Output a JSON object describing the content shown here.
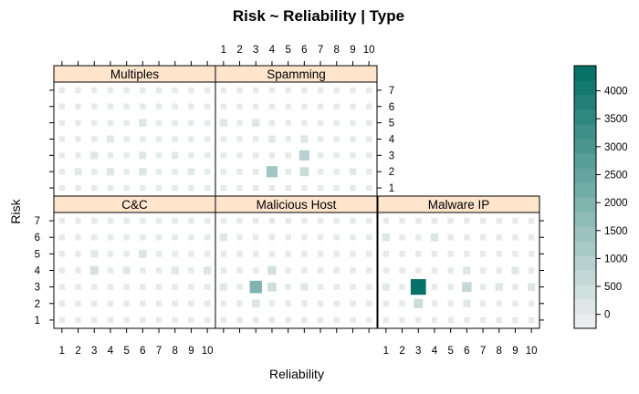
{
  "chart_data": {
    "type": "heatmap",
    "title": "Risk ~ Reliability | Type",
    "xlabel": "Reliability",
    "ylabel": "Risk",
    "x_ticks": [
      1,
      2,
      3,
      4,
      5,
      6,
      7,
      8,
      9,
      10
    ],
    "y_ticks": [
      1,
      2,
      3,
      4,
      5,
      6,
      7
    ],
    "colorbar": {
      "ticks": [
        0,
        500,
        1000,
        1500,
        2000,
        2500,
        3000,
        3500,
        4000
      ],
      "range": [
        -250,
        4450
      ],
      "low_color": "#f2f2f2",
      "high_color": "#006e64"
    },
    "panels": [
      {
        "name": "Multiples",
        "cells": [
          {
            "x": 4,
            "y": 2,
            "value": 140
          },
          {
            "x": 6,
            "y": 2,
            "value": 150
          },
          {
            "x": 3,
            "y": 3,
            "value": 110
          },
          {
            "x": 6,
            "y": 3,
            "value": 110
          },
          {
            "x": 6,
            "y": 5,
            "value": 160
          },
          {
            "x": 4,
            "y": 4,
            "value": 90
          },
          {
            "x": 2,
            "y": 2,
            "value": 70
          },
          {
            "x": 8,
            "y": 3,
            "value": 70
          },
          {
            "x": 9,
            "y": 2,
            "value": 60
          }
        ]
      },
      {
        "name": "Spamming",
        "cells": [
          {
            "x": 4,
            "y": 2,
            "value": 1300
          },
          {
            "x": 6,
            "y": 3,
            "value": 900
          },
          {
            "x": 6,
            "y": 2,
            "value": 500
          },
          {
            "x": 3,
            "y": 5,
            "value": 150
          },
          {
            "x": 1,
            "y": 5,
            "value": 120
          },
          {
            "x": 6,
            "y": 4,
            "value": 130
          },
          {
            "x": 4,
            "y": 4,
            "value": 80
          },
          {
            "x": 9,
            "y": 2,
            "value": 70
          }
        ]
      },
      {
        "name": "C&C",
        "cells": [
          {
            "x": 3,
            "y": 4,
            "value": 320
          },
          {
            "x": 6,
            "y": 5,
            "value": 190
          },
          {
            "x": 10,
            "y": 4,
            "value": 170
          },
          {
            "x": 8,
            "y": 4,
            "value": 120
          },
          {
            "x": 5,
            "y": 4,
            "value": 100
          },
          {
            "x": 3,
            "y": 5,
            "value": 90
          }
        ]
      },
      {
        "name": "Malicious Host",
        "cells": [
          {
            "x": 3,
            "y": 3,
            "value": 1950
          },
          {
            "x": 4,
            "y": 3,
            "value": 420
          },
          {
            "x": 4,
            "y": 4,
            "value": 360
          },
          {
            "x": 3,
            "y": 2,
            "value": 190
          },
          {
            "x": 1,
            "y": 6,
            "value": 130
          },
          {
            "x": 6,
            "y": 3,
            "value": 100
          },
          {
            "x": 1,
            "y": 3,
            "value": 90
          }
        ]
      },
      {
        "name": "Malware IP",
        "cells": [
          {
            "x": 3,
            "y": 3,
            "value": 4350
          },
          {
            "x": 6,
            "y": 3,
            "value": 650
          },
          {
            "x": 3,
            "y": 2,
            "value": 500
          },
          {
            "x": 4,
            "y": 6,
            "value": 180
          },
          {
            "x": 1,
            "y": 6,
            "value": 150
          },
          {
            "x": 6,
            "y": 4,
            "value": 150
          },
          {
            "x": 8,
            "y": 3,
            "value": 140
          },
          {
            "x": 10,
            "y": 3,
            "value": 140
          },
          {
            "x": 9,
            "y": 4,
            "value": 120
          },
          {
            "x": 6,
            "y": 2,
            "value": 100
          },
          {
            "x": 1,
            "y": 3,
            "value": 80
          }
        ]
      }
    ]
  }
}
